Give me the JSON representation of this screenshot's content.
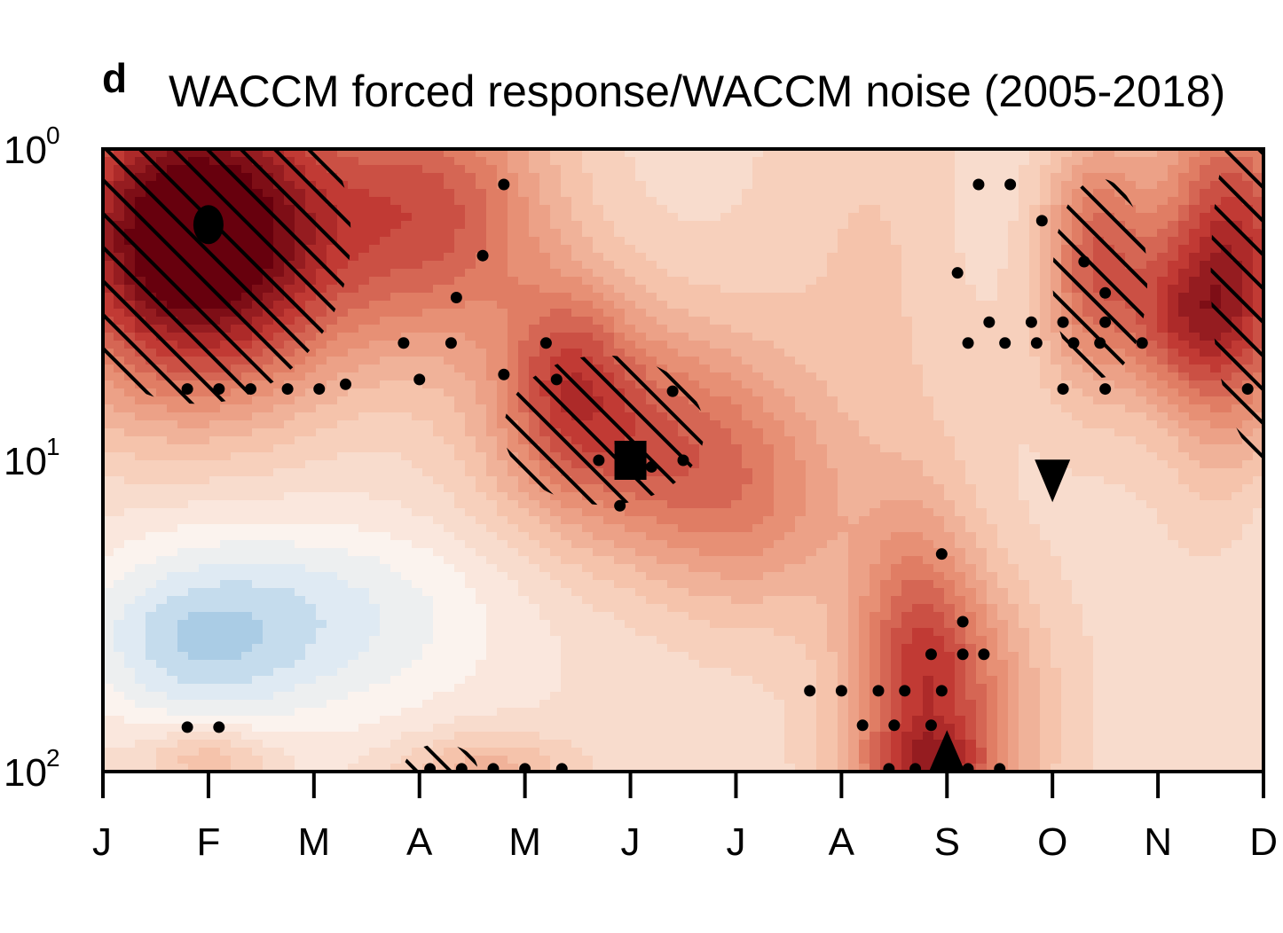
{
  "panel_label": "d",
  "chart_data": {
    "type": "heatmap",
    "title": "WACCM forced response/WACCM noise (2005-2018)",
    "x_categories": [
      "J",
      "F",
      "M",
      "A",
      "M",
      "J",
      "J",
      "A",
      "S",
      "O",
      "N",
      "D"
    ],
    "y_scale": "log",
    "y_reversed": true,
    "y_ticks": [
      {
        "base": "10",
        "exp": "0",
        "value": 1
      },
      {
        "base": "10",
        "exp": "1",
        "value": 10
      },
      {
        "base": "10",
        "exp": "2",
        "value": 100
      }
    ],
    "ylim": [
      1,
      100
    ],
    "colorscale": {
      "negative": "#3d87c0",
      "neutral": "#fbf3ee",
      "positive": "#67000d"
    },
    "blobs": [
      {
        "month": 0.9,
        "y": 1.9,
        "rx": 1.4,
        "ry": 0.26,
        "val": 1.55
      },
      {
        "month": 3.2,
        "y": 1.6,
        "rx": 1.1,
        "ry": 0.22,
        "val": 0.7
      },
      {
        "month": 5.0,
        "y": 8.5,
        "rx": 1.4,
        "ry": 0.2,
        "val": 0.72
      },
      {
        "month": 4.4,
        "y": 5.2,
        "rx": 0.6,
        "ry": 0.16,
        "val": 0.45
      },
      {
        "month": 6.2,
        "y": 15,
        "rx": 1.0,
        "ry": 0.18,
        "val": 0.35
      },
      {
        "month": 8.0,
        "y": 60,
        "rx": 0.9,
        "ry": 0.2,
        "val": 0.6
      },
      {
        "month": 7.7,
        "y": 35,
        "rx": 0.6,
        "ry": 0.25,
        "val": 0.45
      },
      {
        "month": 7.8,
        "y": 95,
        "rx": 0.7,
        "ry": 0.06,
        "val": 0.45
      },
      {
        "month": 9.4,
        "y": 2.3,
        "rx": 0.55,
        "ry": 0.2,
        "val": 0.75
      },
      {
        "month": 10.7,
        "y": 2.4,
        "rx": 0.7,
        "ry": 0.28,
        "val": 1.0
      },
      {
        "month": 10.2,
        "y": 3.6,
        "rx": 0.5,
        "ry": 0.12,
        "val": 0.4
      },
      {
        "month": 7.5,
        "y": 2.0,
        "rx": 1.2,
        "ry": 0.32,
        "val": 0.18
      },
      {
        "month": 2.3,
        "y": 15,
        "rx": 1.4,
        "ry": 0.12,
        "val": 0.12
      },
      {
        "month": 3.6,
        "y": 100,
        "rx": 0.8,
        "ry": 0.06,
        "val": 0.35
      },
      {
        "month": 1.0,
        "y": 90,
        "rx": 0.6,
        "ry": 0.05,
        "val": 0.3
      },
      {
        "month": 1.7,
        "y": 30,
        "rx": 1.8,
        "ry": 0.2,
        "val": -0.38
      },
      {
        "month": 0.8,
        "y": 40,
        "rx": 1.0,
        "ry": 0.12,
        "val": -0.28
      },
      {
        "month": 11.5,
        "y": 17,
        "rx": 0.55,
        "ry": 0.12,
        "val": -0.25
      },
      {
        "month": 8.5,
        "y": 1.6,
        "rx": 0.9,
        "ry": 0.2,
        "val": -0.12
      },
      {
        "month": 3.2,
        "y": 18,
        "rx": 2.3,
        "ry": 0.25,
        "val": -0.1
      }
    ],
    "background_value": 0.2,
    "hatched_regions": [
      {
        "month": 0.9,
        "y": 1.9,
        "rx": 1.45,
        "ry": 0.27
      },
      {
        "month": 4.75,
        "y": 8.0,
        "rx": 0.95,
        "ry": 0.12
      },
      {
        "month": 9.45,
        "y": 2.6,
        "rx": 0.45,
        "ry": 0.16
      },
      {
        "month": 11.05,
        "y": 2.5,
        "rx": 0.55,
        "ry": 0.3
      },
      {
        "month": 3.2,
        "y": 98,
        "rx": 0.35,
        "ry": 0.04
      }
    ],
    "stippling": [
      [
        3.8,
        1.3
      ],
      [
        3.6,
        2.2
      ],
      [
        3.35,
        3.0
      ],
      [
        3.3,
        4.2
      ],
      [
        2.85,
        4.2
      ],
      [
        3.0,
        5.5
      ],
      [
        3.8,
        5.3
      ],
      [
        0.8,
        5.9
      ],
      [
        1.1,
        5.9
      ],
      [
        1.4,
        5.9
      ],
      [
        1.75,
        5.9
      ],
      [
        2.05,
        5.9
      ],
      [
        2.3,
        5.7
      ],
      [
        4.3,
        5.5
      ],
      [
        4.7,
        10
      ],
      [
        5.2,
        10.5
      ],
      [
        5.5,
        10
      ],
      [
        4.9,
        14
      ],
      [
        5.4,
        6.0
      ],
      [
        4.2,
        4.2
      ],
      [
        8.3,
        1.3
      ],
      [
        8.6,
        1.3
      ],
      [
        8.9,
        1.7
      ],
      [
        9.3,
        2.3
      ],
      [
        8.1,
        2.5
      ],
      [
        9.5,
        2.9
      ],
      [
        8.4,
        3.6
      ],
      [
        8.8,
        3.6
      ],
      [
        9.1,
        3.6
      ],
      [
        9.5,
        3.6
      ],
      [
        8.2,
        4.2
      ],
      [
        8.55,
        4.2
      ],
      [
        8.85,
        4.2
      ],
      [
        9.2,
        4.2
      ],
      [
        9.45,
        4.2
      ],
      [
        9.85,
        4.2
      ],
      [
        9.1,
        5.9
      ],
      [
        9.5,
        5.9
      ],
      [
        10.85,
        5.9
      ],
      [
        7.95,
        20
      ],
      [
        8.15,
        33
      ],
      [
        7.85,
        42
      ],
      [
        8.15,
        42
      ],
      [
        8.35,
        42
      ],
      [
        6.7,
        55
      ],
      [
        7.0,
        55
      ],
      [
        7.35,
        55
      ],
      [
        7.6,
        55
      ],
      [
        7.95,
        55
      ],
      [
        7.2,
        71
      ],
      [
        7.5,
        71
      ],
      [
        7.85,
        71
      ],
      [
        0.8,
        72
      ],
      [
        1.1,
        72
      ],
      [
        4.0,
        98
      ],
      [
        4.35,
        98
      ],
      [
        3.7,
        98
      ],
      [
        3.1,
        98
      ],
      [
        3.4,
        98
      ],
      [
        7.45,
        98
      ],
      [
        7.7,
        98
      ],
      [
        8.2,
        98
      ],
      [
        8.5,
        98
      ]
    ],
    "markers": [
      {
        "shape": "circle",
        "month": 1.0,
        "y": 1.75
      },
      {
        "shape": "square",
        "month": 5.0,
        "y": 10
      },
      {
        "shape": "triangle-down",
        "month": 9.0,
        "y": 11.5
      },
      {
        "shape": "triangle-up",
        "month": 8.0,
        "y": 85
      }
    ]
  }
}
